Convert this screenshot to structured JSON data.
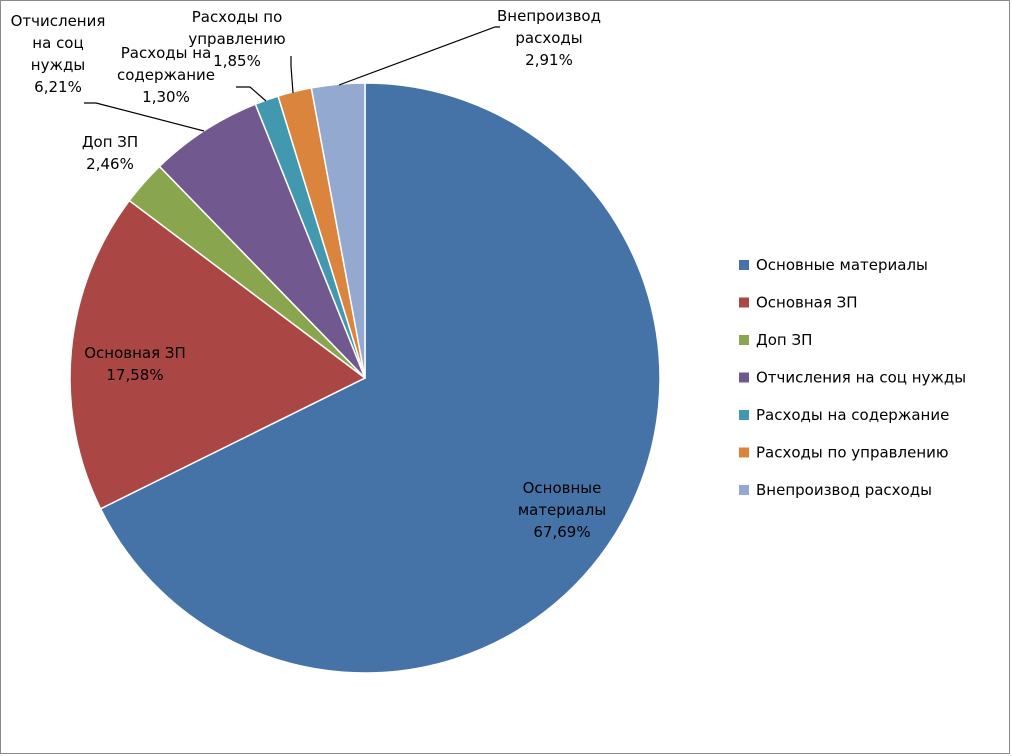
{
  "chart_data": {
    "type": "pie",
    "slices": [
      {
        "name": "Основные материалы",
        "value": 67.69,
        "label": "67,69%",
        "color": "#4572A7",
        "label_lines": [
          "Основные",
          "материалы",
          "67,69%"
        ]
      },
      {
        "name": "Основная ЗП",
        "value": 17.58,
        "label": "17,58%",
        "color": "#AA4643",
        "label_lines": [
          "Основная ЗП",
          "17,58%"
        ]
      },
      {
        "name": "Доп ЗП",
        "value": 2.46,
        "label": "2,46%",
        "color": "#89A54E",
        "label_lines": [
          "Доп ЗП",
          "2,46%"
        ]
      },
      {
        "name": "Отчисления на соц нужды",
        "value": 6.21,
        "label": "6,21%",
        "color": "#71588F",
        "label_lines": [
          "Отчисления",
          "на соц",
          "нужды",
          "6,21%"
        ]
      },
      {
        "name": "Расходы на содержание",
        "value": 1.3,
        "label": "1,30%",
        "color": "#4198AF",
        "label_lines": [
          "Расходы на",
          "содержание",
          "1,30%"
        ]
      },
      {
        "name": "Расходы по управлению",
        "value": 1.85,
        "label": "1,85%",
        "color": "#DB843D",
        "label_lines": [
          "Расходы по",
          "управлению",
          "1,85%"
        ]
      },
      {
        "name": "Внепроизвод расходы",
        "value": 2.91,
        "label": "2,91%",
        "color": "#93A9CF",
        "label_lines": [
          "Внепроизвод",
          "расходы",
          "2,91%"
        ]
      }
    ],
    "legend": {
      "position": "right",
      "items": [
        "Основные материалы",
        "Основная ЗП",
        "Доп ЗП",
        "Отчисления на соц нужды",
        "Расходы на содержание",
        "Расходы по управлению",
        "Внепроизвод расходы"
      ]
    }
  }
}
